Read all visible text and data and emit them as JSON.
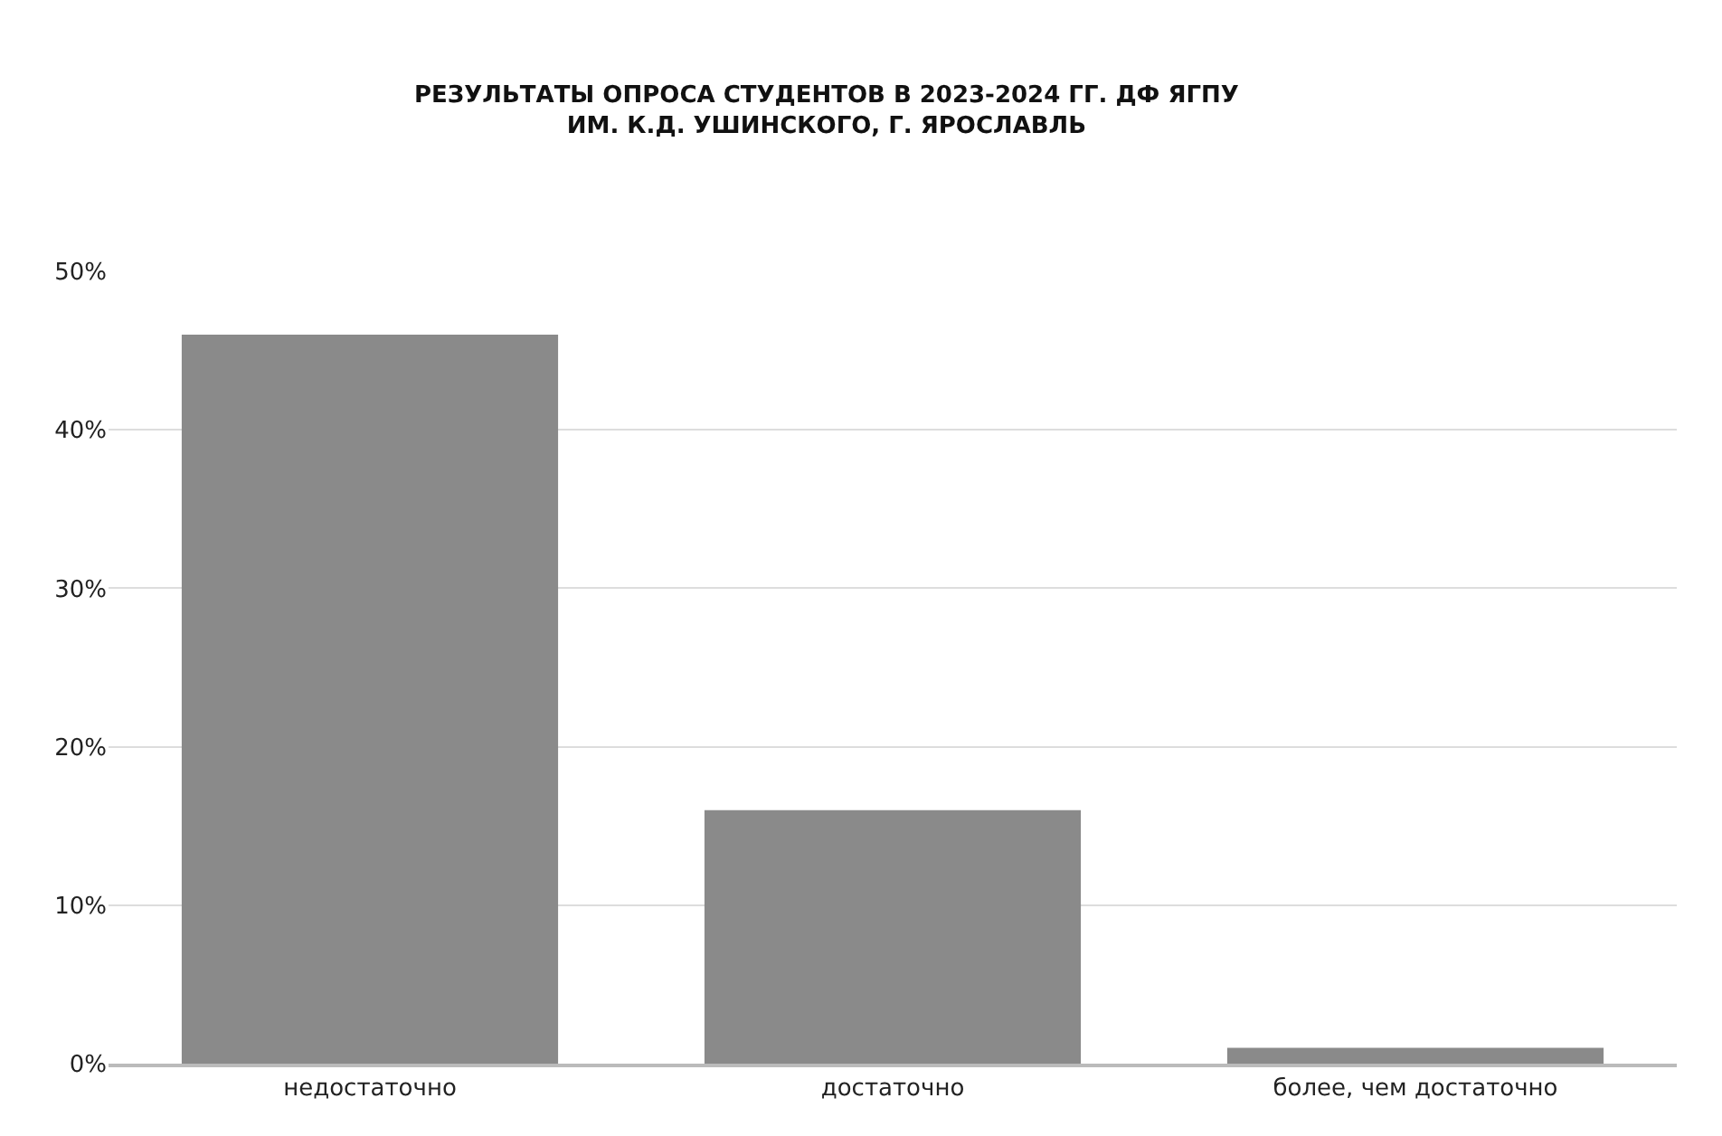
{
  "chart_data": {
    "type": "bar",
    "title": "РЕЗУЛЬТАТЫ ОПРОСА СТУДЕНТОВ В 2023-2024 ГГ. ДФ ЯГПУ\nИМ. К.Д. УШИНСКОГО, Г. ЯРОСЛАВЛЬ",
    "categories": [
      "недостаточно",
      "достаточно",
      "более, чем достаточно"
    ],
    "values": [
      46,
      16,
      1
    ],
    "color": "#8a8a8a",
    "ylim": [
      0,
      50
    ],
    "yticks": [
      {
        "value": 0,
        "label": "0%"
      },
      {
        "value": 10,
        "label": "10%"
      },
      {
        "value": 20,
        "label": "20%"
      },
      {
        "value": 30,
        "label": "30%"
      },
      {
        "value": 40,
        "label": "40%"
      },
      {
        "value": 50,
        "label": "50%"
      }
    ],
    "grid": "y"
  }
}
